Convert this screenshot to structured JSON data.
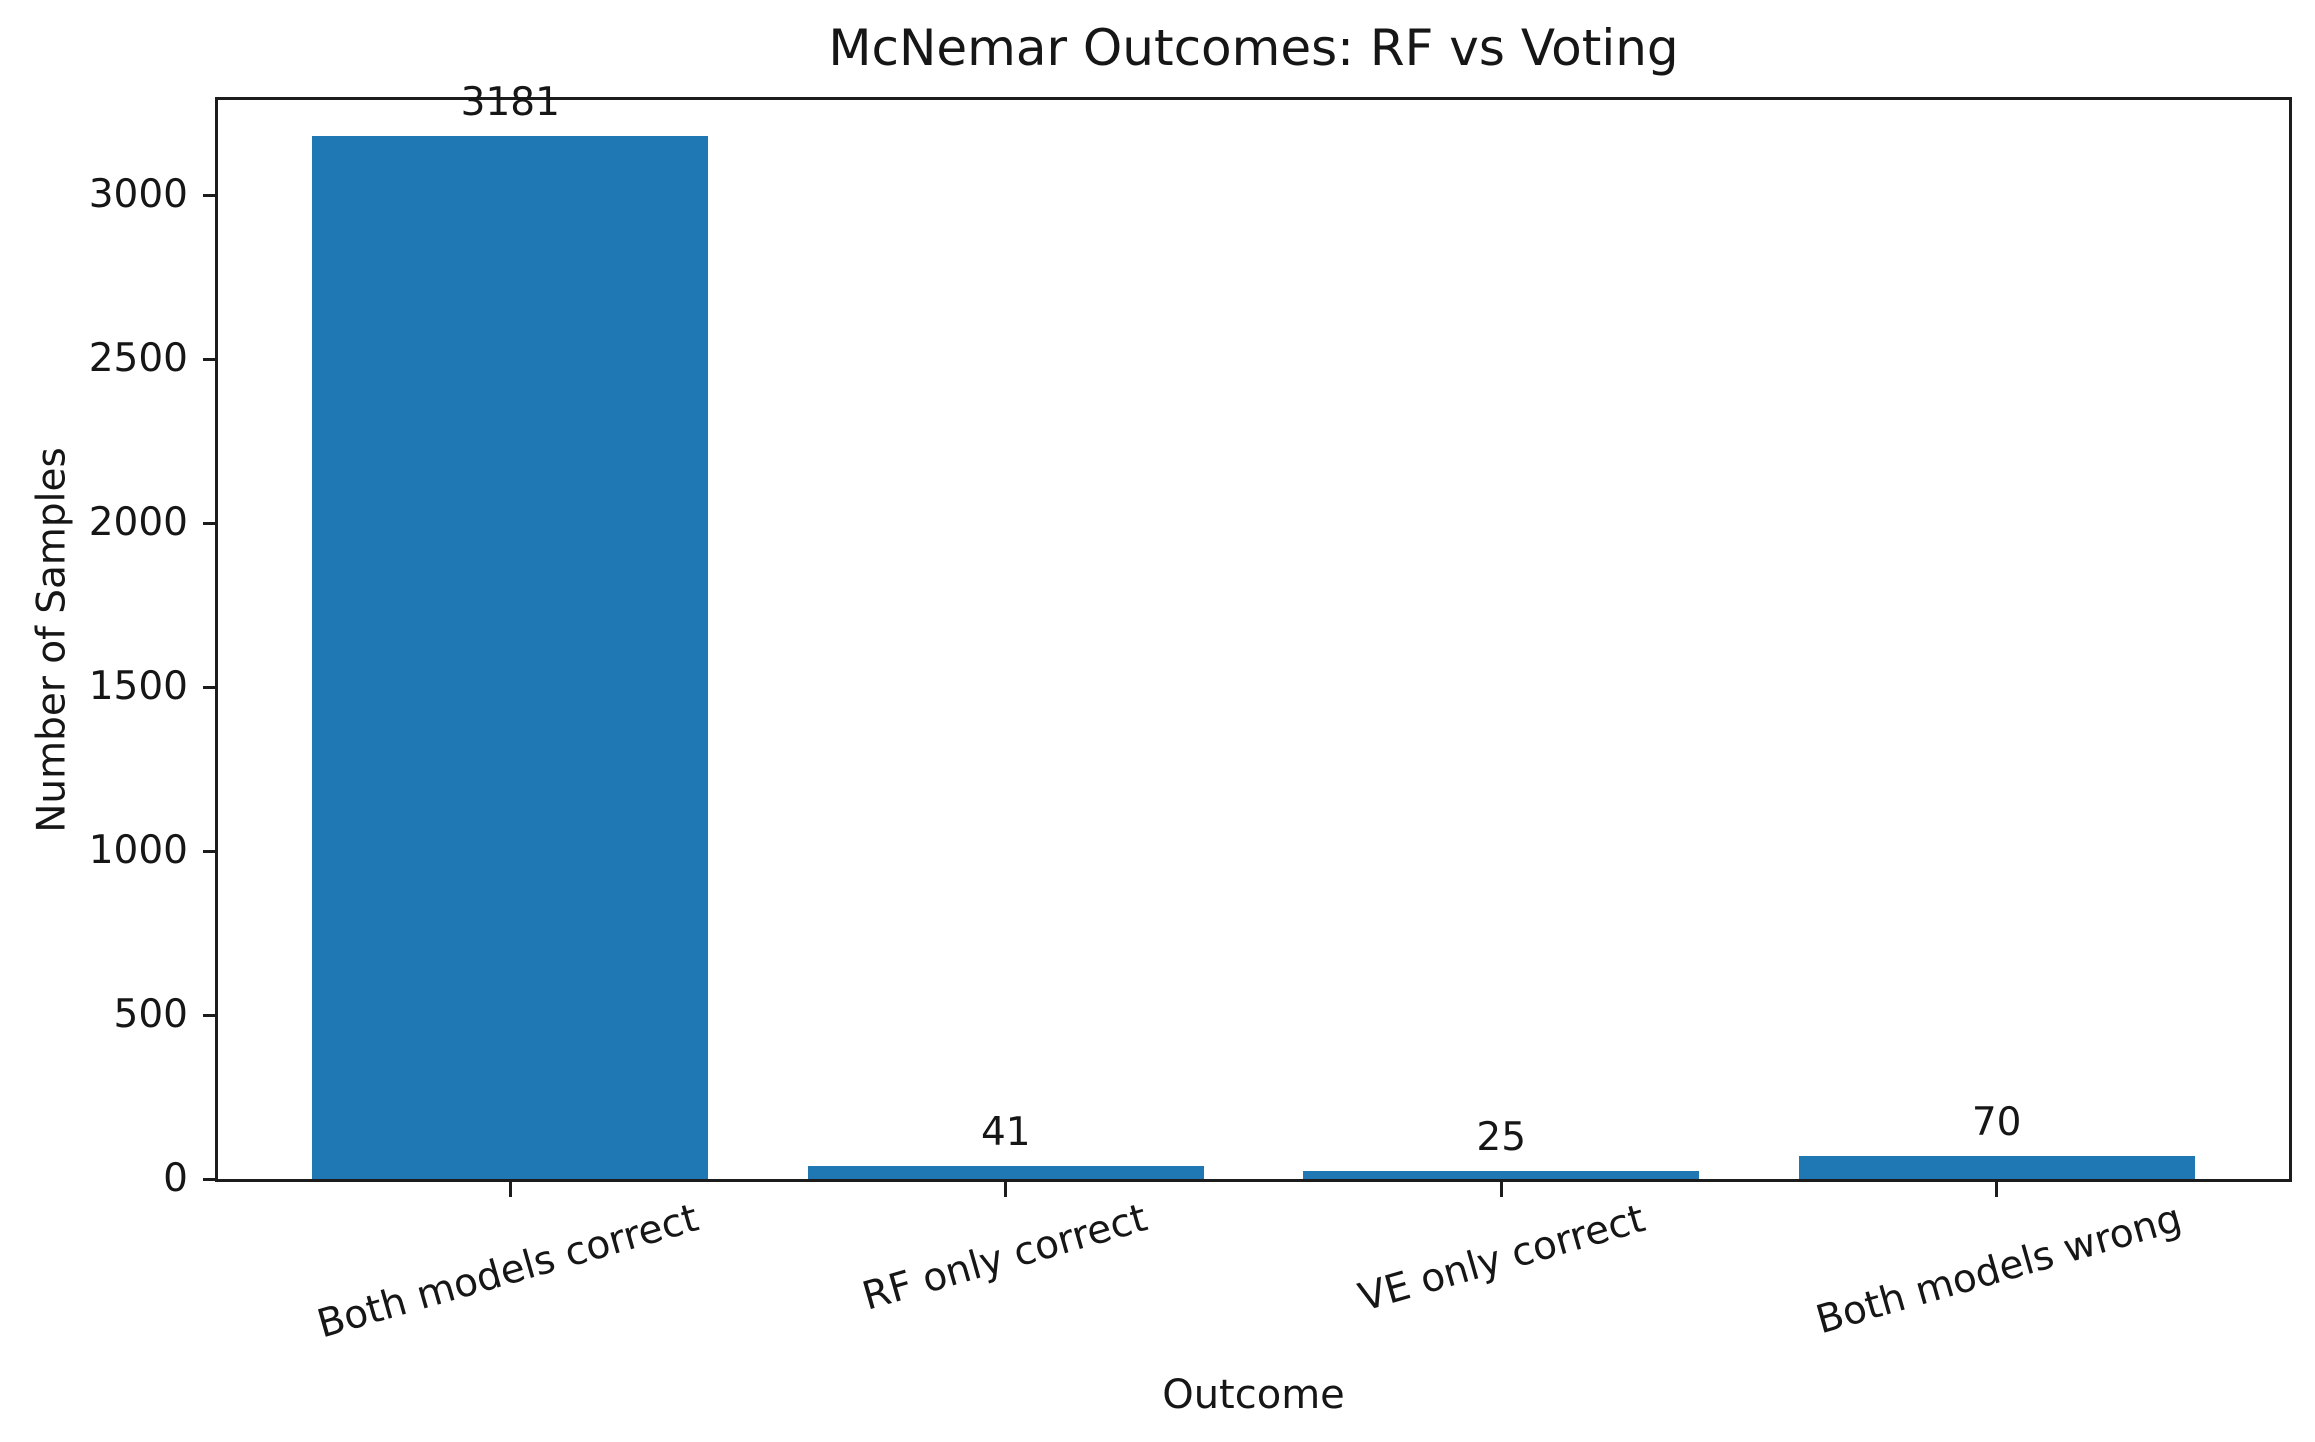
{
  "chart_data": {
    "type": "bar",
    "title": "McNemar Outcomes: RF vs Voting",
    "xlabel": "Outcome",
    "ylabel": "Number of Samples",
    "categories": [
      "Both models correct",
      "RF only correct",
      "VE only correct",
      "Both models wrong"
    ],
    "values": [
      3181,
      41,
      25,
      70
    ],
    "bar_value_labels": [
      "3181",
      "41",
      "25",
      "70"
    ],
    "yticks": [
      0,
      500,
      1000,
      1500,
      2000,
      2500,
      3000
    ],
    "ytick_labels": [
      "0",
      "500",
      "1000",
      "1500",
      "2000",
      "2500",
      "3000"
    ],
    "ylim": [
      0,
      3291
    ],
    "bar_color": "#1f77b4",
    "spine_color": "#1c1c1c",
    "text_color": "#161616",
    "grid": false,
    "legend": null,
    "x_tick_label_rotation_deg": 16,
    "bar_relative_width": 0.8
  }
}
